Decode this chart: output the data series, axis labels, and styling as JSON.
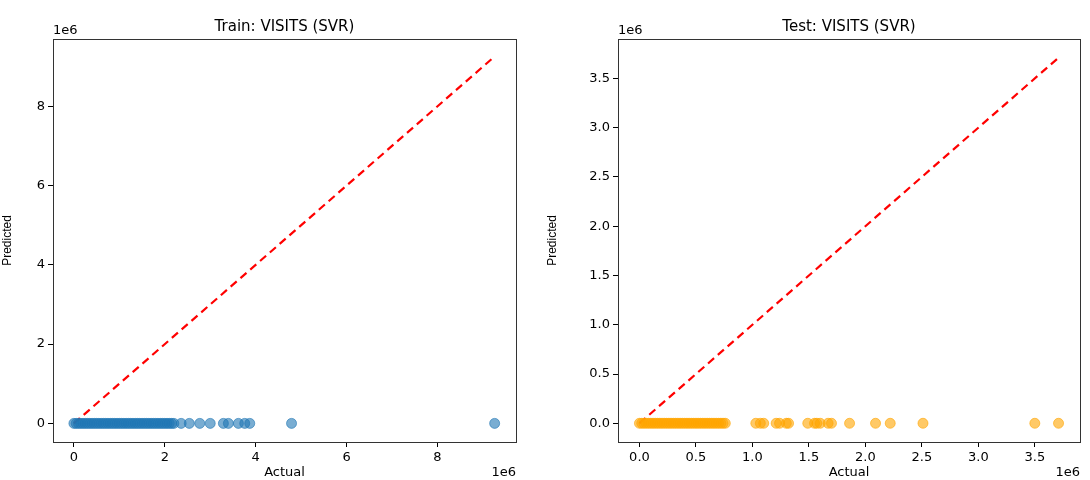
{
  "chart_data": [
    {
      "type": "scatter",
      "title": "Train: VISITS (SVR)",
      "xlabel": "Actual",
      "ylabel": "Predicted",
      "annotations": [
        "1e6",
        "1e6"
      ],
      "xlim": [
        -0.46,
        9.73
      ],
      "ylim": [
        -0.47,
        9.7
      ],
      "xticks": [
        0,
        2,
        4,
        6,
        8
      ],
      "yticks": [
        0,
        2,
        4,
        6,
        8
      ],
      "grid": false,
      "legend": false,
      "series": [
        {
          "type": "scatter",
          "marker": "circle",
          "color": "#1f77b4",
          "x": [
            0,
            0.05,
            0.1,
            0.15,
            0.2,
            0.25,
            0.3,
            0.35,
            0.4,
            0.45,
            0.5,
            0.55,
            0.6,
            0.65,
            0.7,
            0.75,
            0.8,
            0.85,
            0.9,
            0.95,
            1,
            1.05,
            1.1,
            1.15,
            1.2,
            1.25,
            1.3,
            1.35,
            1.4,
            1.45,
            1.5,
            1.55,
            1.6,
            1.65,
            1.7,
            1.75,
            1.8,
            1.85,
            1.9,
            1.95,
            2,
            2.05,
            2.1,
            2.15,
            2.2,
            2.36,
            2.54,
            2.77,
            3,
            3.29,
            3.4,
            3.62,
            3.76,
            3.87,
            4.79,
            9.26
          ],
          "values": [
            0,
            0,
            0,
            0,
            0,
            0,
            0,
            0,
            0,
            0,
            0,
            0,
            0,
            0,
            0,
            0,
            0,
            0,
            0,
            0,
            0,
            0,
            0,
            0,
            0,
            0,
            0,
            0,
            0,
            0,
            0,
            0,
            0,
            0,
            0,
            0,
            0,
            0,
            0,
            0,
            0,
            0,
            0,
            0,
            0,
            0,
            0,
            0,
            0,
            0,
            0,
            0,
            0,
            0,
            0,
            0
          ]
        },
        {
          "type": "line",
          "marker": "none",
          "color": "#ff0000",
          "line_style": "dashed",
          "x": [
            0,
            9.26
          ],
          "values": [
            0,
            9.26
          ]
        }
      ]
    },
    {
      "type": "scatter",
      "title": "Test: VISITS (SVR)",
      "xlabel": "Actual",
      "ylabel": "Predicted",
      "annotations": [
        "1e6",
        "1e6"
      ],
      "xlim": [
        -0.19,
        3.9
      ],
      "ylim": [
        -0.19,
        3.9
      ],
      "xticks": [
        {
          "value": 0,
          "label": "0.0"
        },
        0.5,
        {
          "value": 1,
          "label": "1.0"
        },
        1.5,
        {
          "value": 2,
          "label": "2.0"
        },
        2.5,
        {
          "value": 3,
          "label": "3.0"
        },
        3.5
      ],
      "yticks": [
        {
          "value": 0,
          "label": "0.0"
        },
        0.5,
        {
          "value": 1,
          "label": "1.0"
        },
        1.5,
        {
          "value": 2,
          "label": "2.0"
        },
        2.5,
        {
          "value": 3,
          "label": "3.0"
        },
        3.5
      ],
      "grid": false,
      "legend": false,
      "series": [
        {
          "type": "scatter",
          "marker": "circle",
          "color": "#ffa500",
          "x": [
            0,
            0.02,
            0.04,
            0.06,
            0.08,
            0.1,
            0.12,
            0.14,
            0.16,
            0.18,
            0.2,
            0.22,
            0.24,
            0.26,
            0.28,
            0.3,
            0.32,
            0.34,
            0.36,
            0.38,
            0.4,
            0.42,
            0.44,
            0.46,
            0.48,
            0.5,
            0.52,
            0.54,
            0.56,
            0.58,
            0.6,
            0.62,
            0.64,
            0.66,
            0.68,
            0.7,
            0.72,
            0.74,
            0.76,
            1.03,
            1.07,
            1.1,
            1.21,
            1.24,
            1.3,
            1.32,
            1.49,
            1.55,
            1.57,
            1.6,
            1.67,
            1.7,
            1.86,
            2.09,
            2.22,
            2.51,
            3.5,
            3.71
          ],
          "values": [
            0,
            0,
            0,
            0,
            0,
            0,
            0,
            0,
            0,
            0,
            0,
            0,
            0,
            0,
            0,
            0,
            0,
            0,
            0,
            0,
            0,
            0,
            0,
            0,
            0,
            0,
            0,
            0,
            0,
            0,
            0,
            0,
            0,
            0,
            0,
            0,
            0,
            0,
            0,
            0,
            0,
            0,
            0,
            0,
            0,
            0,
            0,
            0,
            0,
            0,
            0,
            0,
            0,
            0,
            0,
            0,
            0,
            0
          ]
        },
        {
          "type": "line",
          "marker": "none",
          "color": "#ff0000",
          "line_style": "dashed",
          "x": [
            0,
            3.71
          ],
          "values": [
            0,
            3.71
          ]
        }
      ]
    }
  ]
}
